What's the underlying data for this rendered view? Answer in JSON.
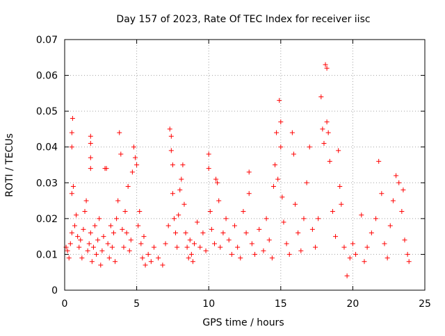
{
  "chart_data": {
    "type": "scatter",
    "title": "Day 157 of 2023, Rate Of TEC Index for receiver iisc",
    "xlabel": "GPS time / hours",
    "ylabel": "ROTI / TECUs",
    "xlim": [
      0,
      25
    ],
    "ylim": [
      0,
      0.07
    ],
    "xticks": [
      0,
      5,
      10,
      15,
      20,
      25
    ],
    "yticks": [
      0,
      0.01,
      0.02,
      0.03,
      0.04,
      0.05,
      0.06,
      0.07
    ],
    "xtick_labels": [
      "0",
      "5",
      "10",
      "15",
      "20",
      "25"
    ],
    "ytick_labels": [
      "0",
      "0.01",
      "0.02",
      "0.03",
      "0.04",
      "0.05",
      "0.06",
      "0.07"
    ],
    "grid": true,
    "marker": "+",
    "color": "#ff0000",
    "series": [
      {
        "points": [
          [
            0.1,
            0.012
          ],
          [
            0.2,
            0.011
          ],
          [
            0.3,
            0.009
          ],
          [
            0.4,
            0.013
          ],
          [
            0.5,
            0.016
          ],
          [
            0.5,
            0.027
          ],
          [
            0.5,
            0.044
          ],
          [
            0.55,
            0.048
          ],
          [
            0.5,
            0.04
          ],
          [
            0.6,
            0.029
          ],
          [
            0.7,
            0.018
          ],
          [
            0.8,
            0.021
          ],
          [
            0.9,
            0.015
          ],
          [
            1.0,
            0.012
          ],
          [
            1.1,
            0.014
          ],
          [
            1.2,
            0.009
          ],
          [
            1.3,
            0.017
          ],
          [
            1.4,
            0.022
          ],
          [
            1.5,
            0.025
          ],
          [
            1.6,
            0.011
          ],
          [
            1.7,
            0.013
          ],
          [
            1.8,
            0.016
          ],
          [
            1.8,
            0.034
          ],
          [
            1.8,
            0.037
          ],
          [
            1.8,
            0.043
          ],
          [
            1.8,
            0.041
          ],
          [
            1.9,
            0.008
          ],
          [
            2.0,
            0.012
          ],
          [
            2.1,
            0.018
          ],
          [
            2.2,
            0.01
          ],
          [
            2.3,
            0.014
          ],
          [
            2.4,
            0.02
          ],
          [
            2.5,
            0.007
          ],
          [
            2.6,
            0.011
          ],
          [
            2.7,
            0.015
          ],
          [
            2.8,
            0.034
          ],
          [
            2.9,
            0.034
          ],
          [
            3.0,
            0.013
          ],
          [
            3.1,
            0.009
          ],
          [
            3.2,
            0.018
          ],
          [
            3.3,
            0.012
          ],
          [
            3.4,
            0.016
          ],
          [
            3.5,
            0.008
          ],
          [
            3.6,
            0.02
          ],
          [
            3.7,
            0.025
          ],
          [
            3.8,
            0.044
          ],
          [
            3.9,
            0.038
          ],
          [
            4.0,
            0.017
          ],
          [
            4.1,
            0.012
          ],
          [
            4.2,
            0.022
          ],
          [
            4.3,
            0.016
          ],
          [
            4.4,
            0.029
          ],
          [
            4.5,
            0.011
          ],
          [
            4.6,
            0.014
          ],
          [
            4.7,
            0.033
          ],
          [
            4.8,
            0.04
          ],
          [
            4.9,
            0.037
          ],
          [
            5.0,
            0.035
          ],
          [
            5.1,
            0.018
          ],
          [
            5.2,
            0.022
          ],
          [
            5.3,
            0.013
          ],
          [
            5.4,
            0.009
          ],
          [
            5.5,
            0.015
          ],
          [
            5.6,
            0.007
          ],
          [
            5.8,
            0.01
          ],
          [
            6.0,
            0.008
          ],
          [
            6.2,
            0.012
          ],
          [
            6.5,
            0.009
          ],
          [
            6.8,
            0.007
          ],
          [
            7.0,
            0.013
          ],
          [
            7.2,
            0.018
          ],
          [
            7.3,
            0.045
          ],
          [
            7.4,
            0.043
          ],
          [
            7.4,
            0.039
          ],
          [
            7.5,
            0.035
          ],
          [
            7.5,
            0.027
          ],
          [
            7.6,
            0.02
          ],
          [
            7.7,
            0.016
          ],
          [
            7.8,
            0.012
          ],
          [
            7.9,
            0.021
          ],
          [
            8.0,
            0.028
          ],
          [
            8.1,
            0.031
          ],
          [
            8.2,
            0.035
          ],
          [
            8.3,
            0.024
          ],
          [
            8.4,
            0.016
          ],
          [
            8.5,
            0.012
          ],
          [
            8.6,
            0.009
          ],
          [
            8.7,
            0.014
          ],
          [
            8.8,
            0.01
          ],
          [
            8.9,
            0.008
          ],
          [
            9.0,
            0.013
          ],
          [
            9.2,
            0.019
          ],
          [
            9.4,
            0.012
          ],
          [
            9.6,
            0.016
          ],
          [
            9.8,
            0.011
          ],
          [
            10.0,
            0.038
          ],
          [
            10.0,
            0.034
          ],
          [
            10.1,
            0.022
          ],
          [
            10.2,
            0.017
          ],
          [
            10.4,
            0.013
          ],
          [
            10.5,
            0.031
          ],
          [
            10.6,
            0.03
          ],
          [
            10.7,
            0.025
          ],
          [
            10.8,
            0.012
          ],
          [
            11.0,
            0.016
          ],
          [
            11.2,
            0.02
          ],
          [
            11.4,
            0.014
          ],
          [
            11.6,
            0.01
          ],
          [
            11.8,
            0.018
          ],
          [
            12.0,
            0.012
          ],
          [
            12.2,
            0.009
          ],
          [
            12.4,
            0.022
          ],
          [
            12.6,
            0.016
          ],
          [
            12.8,
            0.033
          ],
          [
            12.8,
            0.027
          ],
          [
            13.0,
            0.013
          ],
          [
            13.2,
            0.01
          ],
          [
            13.5,
            0.017
          ],
          [
            13.8,
            0.011
          ],
          [
            14.0,
            0.02
          ],
          [
            14.2,
            0.014
          ],
          [
            14.4,
            0.009
          ],
          [
            14.5,
            0.029
          ],
          [
            14.6,
            0.035
          ],
          [
            14.7,
            0.044
          ],
          [
            14.8,
            0.031
          ],
          [
            14.9,
            0.053
          ],
          [
            15.0,
            0.047
          ],
          [
            15.0,
            0.04
          ],
          [
            15.1,
            0.026
          ],
          [
            15.2,
            0.019
          ],
          [
            15.4,
            0.013
          ],
          [
            15.6,
            0.01
          ],
          [
            15.8,
            0.044
          ],
          [
            15.9,
            0.038
          ],
          [
            16.0,
            0.024
          ],
          [
            16.2,
            0.016
          ],
          [
            16.4,
            0.011
          ],
          [
            16.6,
            0.02
          ],
          [
            16.8,
            0.03
          ],
          [
            17.0,
            0.04
          ],
          [
            17.2,
            0.017
          ],
          [
            17.4,
            0.012
          ],
          [
            17.6,
            0.02
          ],
          [
            17.8,
            0.054
          ],
          [
            17.9,
            0.045
          ],
          [
            18.0,
            0.041
          ],
          [
            18.1,
            0.063
          ],
          [
            18.2,
            0.062
          ],
          [
            18.2,
            0.047
          ],
          [
            18.3,
            0.044
          ],
          [
            18.4,
            0.036
          ],
          [
            18.6,
            0.022
          ],
          [
            18.8,
            0.015
          ],
          [
            19.0,
            0.039
          ],
          [
            19.1,
            0.029
          ],
          [
            19.2,
            0.024
          ],
          [
            19.4,
            0.012
          ],
          [
            19.6,
            0.004
          ],
          [
            19.8,
            0.009
          ],
          [
            20.0,
            0.013
          ],
          [
            20.2,
            0.01
          ],
          [
            20.6,
            0.021
          ],
          [
            20.8,
            0.008
          ],
          [
            21.0,
            0.012
          ],
          [
            21.3,
            0.016
          ],
          [
            21.6,
            0.02
          ],
          [
            21.8,
            0.036
          ],
          [
            22.0,
            0.027
          ],
          [
            22.2,
            0.013
          ],
          [
            22.4,
            0.009
          ],
          [
            22.6,
            0.018
          ],
          [
            22.8,
            0.025
          ],
          [
            23.0,
            0.032
          ],
          [
            23.2,
            0.03
          ],
          [
            23.4,
            0.022
          ],
          [
            23.5,
            0.028
          ],
          [
            23.6,
            0.014
          ],
          [
            23.8,
            0.01
          ],
          [
            23.9,
            0.008
          ]
        ]
      }
    ]
  }
}
